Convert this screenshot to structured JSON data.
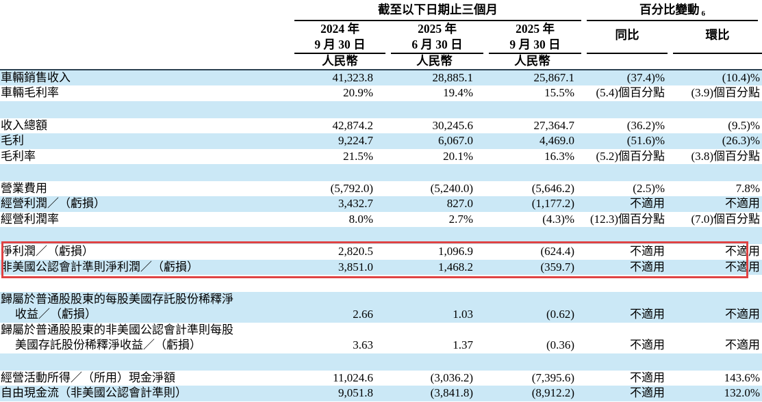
{
  "colors": {
    "row_shade": "#cbe8f6",
    "callout_border": "#df4343",
    "header_rule": "#000000"
  },
  "table": {
    "group_headers": [
      {
        "label": "截至以下日期止三個月"
      },
      {
        "label": "百分比變動",
        "sup": "6"
      }
    ],
    "columns": [
      {
        "line1": "2024 年",
        "line2": "9 月 30 日",
        "currency": "人民幣"
      },
      {
        "line1": "2025 年",
        "line2": "6 月 30 日",
        "currency": "人民幣"
      },
      {
        "line1": "2025 年",
        "line2": "9 月 30 日",
        "currency": "人民幣"
      },
      {
        "label": "同比"
      },
      {
        "label": "環比"
      }
    ],
    "rows": [
      {
        "label": [
          "車輛銷售收入"
        ],
        "values": [
          "41,323.8",
          "28,885.1",
          "25,867.1",
          "(37.4)%",
          "(10.4)%"
        ],
        "shade": true
      },
      {
        "label": [
          "車輛毛利率"
        ],
        "values": [
          "20.9%",
          "19.4%",
          "15.5%",
          "(5.4)個百分點",
          "(3.9)個百分點"
        ],
        "shade": false
      },
      {
        "label": [],
        "values": [
          "",
          "",
          "",
          "",
          ""
        ],
        "shade": true,
        "spacer": true
      },
      {
        "label": [
          "收入總額"
        ],
        "values": [
          "42,874.2",
          "30,245.6",
          "27,364.7",
          "(36.2)%",
          "(9.5)%"
        ],
        "shade": false
      },
      {
        "label": [
          "毛利"
        ],
        "values": [
          "9,224.7",
          "6,067.0",
          "4,469.0",
          "(51.6)%",
          "(26.3)%"
        ],
        "shade": true
      },
      {
        "label": [
          "毛利率"
        ],
        "values": [
          "21.5%",
          "20.1%",
          "16.3%",
          "(5.2)個百分點",
          "(3.8)個百分點"
        ],
        "shade": false
      },
      {
        "label": [],
        "values": [
          "",
          "",
          "",
          "",
          ""
        ],
        "shade": true,
        "spacer": true
      },
      {
        "label": [
          "營業費用"
        ],
        "values": [
          "(5,792.0)",
          "(5,240.0)",
          "(5,646.2)",
          "(2.5)%",
          "7.8%"
        ],
        "shade": false
      },
      {
        "label": [
          "經營利潤／（虧損）"
        ],
        "values": [
          "3,432.7",
          "827.0",
          "(1,177.2)",
          "不適用",
          "不適用"
        ],
        "shade": true
      },
      {
        "label": [
          "經營利潤率"
        ],
        "values": [
          "8.0%",
          "2.7%",
          "(4.3)%",
          "(12.3)個百分點",
          "(7.0)個百分點"
        ],
        "shade": false
      },
      {
        "label": [],
        "values": [
          "",
          "",
          "",
          "",
          ""
        ],
        "shade": true,
        "spacer": true
      },
      {
        "label": [
          "淨利潤／（虧損）"
        ],
        "values": [
          "2,820.5",
          "1,096.9",
          "(624.4)",
          "不適用",
          "不適用"
        ],
        "shade": false,
        "highlight": true
      },
      {
        "label": [
          "非美國公認會計準則淨利潤／（虧損）"
        ],
        "values": [
          "3,851.0",
          "1,468.2",
          "(359.7)",
          "不適用",
          "不適用"
        ],
        "shade": true,
        "highlight": true
      },
      {
        "label": [],
        "values": [
          "",
          "",
          "",
          "",
          ""
        ],
        "shade": false,
        "spacer": true
      },
      {
        "label": [
          "歸屬於普通股股東的每股美國存託股份稀釋淨",
          "收益／（虧損）"
        ],
        "values": [
          "2.66",
          "1.03",
          "(0.62)",
          "不適用",
          "不適用"
        ],
        "shade": true
      },
      {
        "label": [
          "歸屬於普通股股東的非美國公認會計準則每股",
          "美國存託股份稀釋淨收益／（虧損）"
        ],
        "values": [
          "3.63",
          "1.37",
          "(0.36)",
          "不適用",
          "不適用"
        ],
        "shade": false
      },
      {
        "label": [],
        "values": [
          "",
          "",
          "",
          "",
          ""
        ],
        "shade": true,
        "spacer": true
      },
      {
        "label": [
          "經營活動所得／（所用）現金淨額"
        ],
        "values": [
          "11,024.6",
          "(3,036.2)",
          "(7,395.6)",
          "不適用",
          "143.6%"
        ],
        "shade": false
      },
      {
        "label": [
          "自由現金流（非美國公認會計準則）"
        ],
        "values": [
          "9,051.8",
          "(3,841.8)",
          "(8,912.2)",
          "不適用",
          "132.0%"
        ],
        "shade": true
      }
    ]
  }
}
